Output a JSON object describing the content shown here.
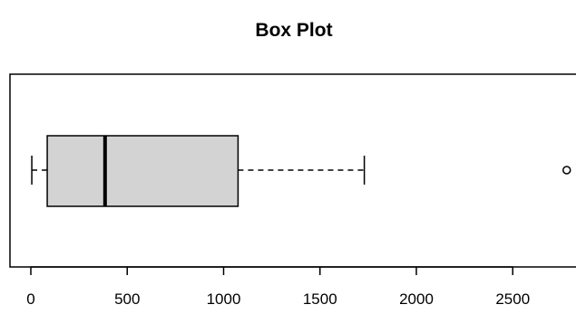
{
  "chart_data": {
    "type": "boxplot",
    "orientation": "horizontal",
    "title": "Box Plot",
    "xlabel": "",
    "ylabel": "",
    "xlim": [
      -60,
      2800
    ],
    "x_ticks": [
      0,
      500,
      1000,
      1500,
      2000,
      2500
    ],
    "x_tick_labels": [
      "0",
      "500",
      "1000",
      "1500",
      "2000",
      "2500"
    ],
    "grid": false,
    "box": {
      "whisker_low": 5,
      "q1": 85,
      "median": 385,
      "q3": 1075,
      "whisker_high": 1730
    },
    "outliers": [
      2780
    ],
    "colors": {
      "box_fill": "#d3d3d3",
      "stroke": "#000000"
    }
  }
}
